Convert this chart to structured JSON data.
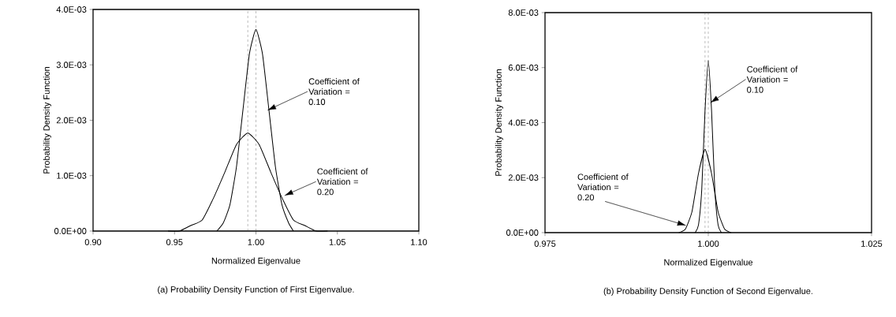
{
  "chart_data": [
    {
      "type": "line",
      "title": "(a) Probability Density Function of First Eigenvalue.",
      "xlabel": "Normalized Eigenvalue",
      "ylabel": "Probability Density Function",
      "xlim": [
        0.9,
        1.1
      ],
      "xticks": [
        {
          "value": 0.9,
          "label": "0.90"
        },
        0.95,
        {
          "value": 1.0,
          "label": "1.00"
        },
        1.05,
        {
          "value": 1.1,
          "label": "1.10"
        }
      ],
      "ylim": [
        0,
        0.004
      ],
      "yticks": [
        {
          "value": 0,
          "label": "0.0E+00"
        },
        {
          "value": 0.001,
          "label": "1.0E-03"
        },
        {
          "value": 0.002,
          "label": "2.0E-03"
        },
        {
          "value": 0.003,
          "label": "3.0E-03"
        },
        {
          "value": 0.004,
          "label": "4.0E-03"
        }
      ],
      "series": [
        {
          "color": "#000000",
          "x": [
            0.976,
            0.98,
            0.984,
            0.988,
            0.992,
            0.996,
            1.0,
            1.004,
            1.008,
            1.012,
            1.016,
            1.02,
            1.023
          ],
          "values": [
            0.0,
            0.00015,
            0.00047,
            0.00115,
            0.00218,
            0.0032,
            0.00364,
            0.0032,
            0.00218,
            0.00115,
            0.00047,
            0.00015,
            0.0
          ]
        },
        {
          "color": "#000000",
          "x": [
            0.946,
            0.953,
            0.96,
            0.967,
            0.974,
            0.981,
            0.988,
            0.995,
            1.002,
            1.009,
            1.016,
            1.023,
            1.03,
            1.037,
            1.044
          ],
          "values": [
            0.0,
            0.0,
            0.0001,
            0.0002,
            0.0006,
            0.00107,
            0.00156,
            0.00177,
            0.00156,
            0.00107,
            0.0006,
            0.0002,
            0.0001,
            0.0,
            0.0
          ]
        }
      ],
      "ref_lines": [
        {
          "axis": "x",
          "value": 1.0,
          "line_style": "dashed",
          "color": "#555555"
        },
        {
          "axis": "x",
          "value": 0.995,
          "line_style": "dashed",
          "color": "#555555"
        }
      ],
      "annotations": [
        {
          "text": "Coefficient of Variation = 0.10",
          "x": 1.007,
          "y": 0.00218
        },
        {
          "text": "Coefficient of Variation = 0.20",
          "x": 1.0175,
          "y": 0.00064
        }
      ],
      "marker": "none",
      "line_style": "solid"
    },
    {
      "type": "line",
      "title": "(b)  Probability Density Function of Second Eigenvalue.",
      "xlabel": "Normalized Eigenvalue",
      "ylabel": "Probability Density Function",
      "xlim": [
        0.975,
        1.025
      ],
      "xticks": [
        0.975,
        {
          "value": 1.0,
          "label": "1.000"
        },
        1.025
      ],
      "ylim": [
        0,
        0.008
      ],
      "yticks": [
        {
          "value": 0,
          "label": "0.0E+00"
        },
        {
          "value": 0.002,
          "label": "2.0E-03"
        },
        {
          "value": 0.004,
          "label": "4.0E-03"
        },
        {
          "value": 0.006,
          "label": "6.0E-03"
        },
        {
          "value": 0.008,
          "label": "8.0E-03"
        }
      ],
      "series": [
        {
          "color": "#000000",
          "x": [
            0.998,
            0.9985,
            0.999,
            0.9995,
            1.0,
            1.0005,
            1.001,
            1.0015,
            1.002
          ],
          "values": [
            0.0,
            0.00028,
            0.00157,
            0.00444,
            0.00626,
            0.00444,
            0.00157,
            0.00028,
            0.0
          ]
        },
        {
          "color": "#000000",
          "x": [
            0.9955,
            0.9965,
            0.9975,
            0.9985,
            0.9995,
            1.0005,
            1.0015,
            1.0025,
            1.0035
          ],
          "values": [
            0.0,
            0.00013,
            0.00076,
            0.00215,
            0.00303,
            0.00215,
            0.00076,
            0.00013,
            0.0
          ]
        }
      ],
      "ref_lines": [
        {
          "axis": "x",
          "value": 1.0,
          "line_style": "dashed",
          "color": "#555555"
        },
        {
          "axis": "x",
          "value": 0.9995,
          "line_style": "dashed",
          "color": "#555555"
        }
      ],
      "annotations": [
        {
          "text": "Coefficient of Variation = 0.10",
          "x": 1.0003,
          "y": 0.00472
        },
        {
          "text": "Coefficient of Variation = 0.20",
          "x": 0.9966,
          "y": 0.00026
        }
      ],
      "marker": "none",
      "line_style": "solid"
    }
  ]
}
